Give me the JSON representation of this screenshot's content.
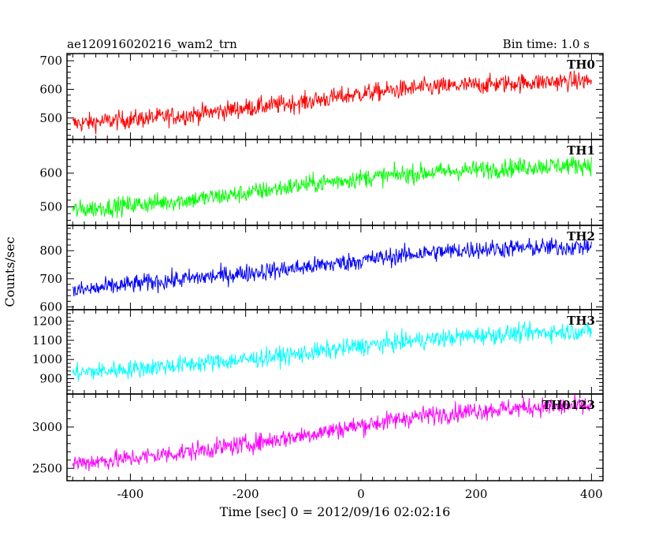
{
  "header": {
    "left": "ae120916020216_wam2_trn",
    "right": "Bin time: 1.0 s"
  },
  "chart_data": {
    "type": "line",
    "xlabel": "Time [sec] 0 = 2012/09/16 02:02:16",
    "ylabel": "Counts/sec",
    "xlim": [
      -510,
      420
    ],
    "x_ticks": [
      -400,
      -200,
      0,
      200,
      400
    ],
    "bin_time_s": 1.0,
    "series": [
      {
        "name": "TH0",
        "color": "#ff0000",
        "ylim": [
          425,
          725
        ],
        "y_ticks": [
          500,
          600,
          700
        ],
        "x": [
          -500,
          -400,
          -300,
          -200,
          -100,
          0,
          100,
          200,
          300,
          400
        ],
        "values": [
          480,
          495,
          510,
          535,
          555,
          585,
          605,
          615,
          625,
          630
        ]
      },
      {
        "name": "TH1",
        "color": "#00ff00",
        "ylim": [
          445,
          700
        ],
        "y_ticks": [
          500,
          600
        ],
        "x": [
          -500,
          -400,
          -300,
          -200,
          -100,
          0,
          100,
          200,
          300,
          400
        ],
        "values": [
          490,
          505,
          520,
          540,
          565,
          585,
          600,
          610,
          620,
          625
        ]
      },
      {
        "name": "TH2",
        "color": "#0000ff",
        "ylim": [
          590,
          890
        ],
        "y_ticks": [
          600,
          700,
          800
        ],
        "x": [
          -500,
          -400,
          -300,
          -200,
          -100,
          0,
          100,
          200,
          300,
          400
        ],
        "values": [
          655,
          680,
          700,
          720,
          740,
          765,
          790,
          805,
          810,
          815
        ]
      },
      {
        "name": "TH3",
        "color": "#00ffff",
        "ylim": [
          820,
          1260
        ],
        "y_ticks": [
          900,
          1000,
          1100,
          1200
        ],
        "x": [
          -500,
          -400,
          -300,
          -200,
          -100,
          0,
          100,
          200,
          300,
          400
        ],
        "values": [
          930,
          950,
          975,
          1000,
          1030,
          1070,
          1100,
          1125,
          1140,
          1150
        ]
      },
      {
        "name": "TH0123",
        "color": "#ff00ff",
        "ylim": [
          2350,
          3400
        ],
        "y_ticks": [
          2500,
          3000
        ],
        "x": [
          -500,
          -400,
          -300,
          -200,
          -100,
          0,
          100,
          200,
          300,
          400
        ],
        "values": [
          2560,
          2620,
          2700,
          2790,
          2900,
          3020,
          3130,
          3200,
          3240,
          3250
        ]
      }
    ]
  }
}
